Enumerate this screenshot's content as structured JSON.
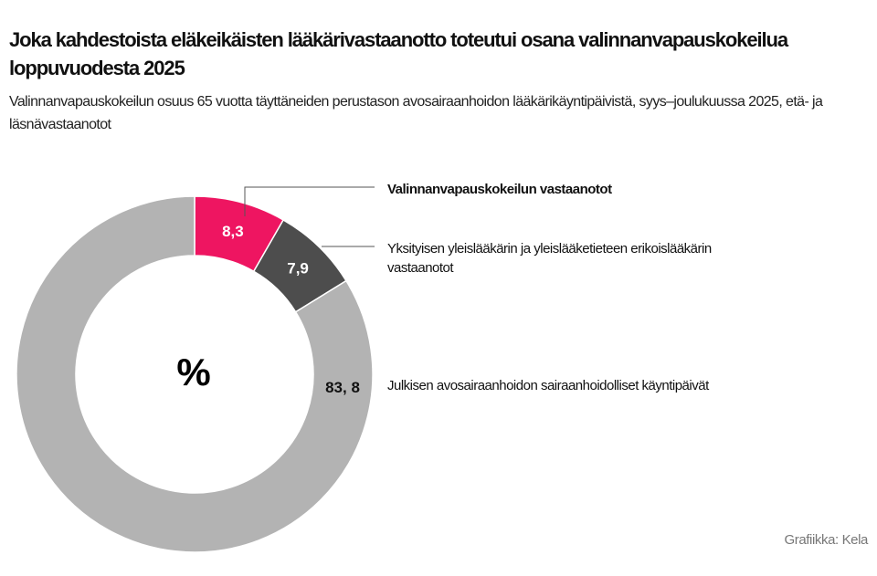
{
  "title": "Joka kahdestoista eläkeikäisten lääkärivastaanotto toteutui osana valinnanvapauskokeilua loppuvuodesta 2025",
  "subtitle": "Valinnanvapauskokeilun osuus 65 vuotta täyttäneiden perustason avosairaanhoidon lääkärikäyntipäivistä, syys–joulukuussa 2025, etä- ja läsnävastaanotot",
  "credit": "Grafiikka: Kela",
  "chart_data": {
    "type": "pie",
    "variant": "donut",
    "center_label": "%",
    "unit": "%",
    "slices": [
      {
        "label": "Valinnanvapauskokeilun vastaanotot",
        "value": 8.3,
        "value_label": "8,3",
        "color": "#ee1561",
        "label_color": "#ffffff"
      },
      {
        "label": "Yksityisen yleislääkärin ja yleislääketieteen erikoislääkärin vastaanotot",
        "value": 7.9,
        "value_label": "7,9",
        "color": "#4d4d4d",
        "label_color": "#ffffff"
      },
      {
        "label": "Julkisen avosairaanhoidon sairaanhoidolliset käyntipäivät",
        "value": 83.8,
        "value_label": "83, 8",
        "color": "#b3b3b3",
        "label_color": "#111111"
      }
    ]
  }
}
